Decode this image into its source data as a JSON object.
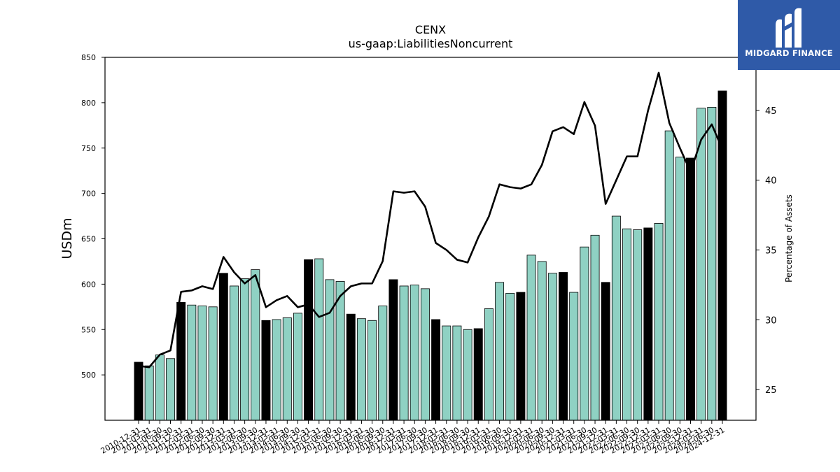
{
  "chart_data": {
    "type": "bar+line",
    "title": "CENX",
    "subtitle": "us-gaap:LiabilitiesNoncurrent",
    "ylabel": "USDm",
    "y2label": "Percentage of Assets",
    "ylim": [
      450,
      850
    ],
    "y2lim": [
      22.8,
      48.8
    ],
    "yticks": [
      500,
      550,
      600,
      650,
      700,
      750,
      800,
      850
    ],
    "y2ticks": [
      25,
      30,
      35,
      40,
      45
    ],
    "bar_color_quarter": "#8fd1c3",
    "bar_color_annual": "#000000",
    "line_color": "#000000",
    "categories": [
      "2010-12-31",
      "2011-03-31",
      "2011-06-30",
      "2011-09-30",
      "2011-12-31",
      "2012-03-31",
      "2012-06-30",
      "2012-09-30",
      "2012-12-31",
      "2013-03-31",
      "2013-06-30",
      "2013-09-30",
      "2013-12-31",
      "2014-03-31",
      "2014-06-30",
      "2014-09-30",
      "2014-12-31",
      "2015-03-31",
      "2015-06-30",
      "2015-09-30",
      "2015-12-31",
      "2016-03-31",
      "2016-06-30",
      "2016-09-30",
      "2016-12-31",
      "2017-03-31",
      "2017-06-30",
      "2017-09-30",
      "2017-12-31",
      "2018-03-31",
      "2018-06-30",
      "2018-09-30",
      "2018-12-31",
      "2019-03-31",
      "2019-06-30",
      "2019-09-30",
      "2019-12-31",
      "2020-03-31",
      "2020-06-30",
      "2020-09-30",
      "2020-12-31",
      "2021-03-31",
      "2021-06-30",
      "2021-09-30",
      "2021-12-31",
      "2022-03-31",
      "2022-06-30",
      "2022-09-30",
      "2022-12-31",
      "2023-03-31",
      "2023-06-30",
      "2023-09-30",
      "2023-12-31",
      "2024-03-31",
      "2024-06-30",
      "2024-12-31"
    ],
    "xticklabels": [
      "2010-12-31",
      "2011-03-31",
      "2011-06-30",
      "2011-09-30",
      "2011-12-31",
      "2012-03-31",
      "2012-06-30",
      "2012-09-30",
      "2012-12-31",
      "2013-03-31",
      "2013-06-30",
      "2013-09-30",
      "2013-12-31",
      "2014-03-31",
      "2014-06-30",
      "2014-09-30",
      "2014-12-31",
      "2015-03-31",
      "2015-06-30",
      "2015-09-30",
      "2015-12-31",
      "2016-03-31",
      "2016-06-30",
      "2016-09-30",
      "2016-12-31",
      "2017-03-31",
      "2017-06-30",
      "2017-09-30",
      "2017-12-31",
      "2018-03-31",
      "2018-06-30",
      "2018-09-30",
      "2018-12-31",
      "2019-03-31",
      "2019-06-30",
      "2019-09-30",
      "2019-12-31",
      "2020-03-31",
      "2020-06-30",
      "2020-09-30",
      "2020-12-31",
      "2021-03-31",
      "2021-06-30",
      "2021-09-30",
      "2021-12-31",
      "2022-03-31",
      "2022-06-30",
      "2022-09-30",
      "2022-12-31",
      "2023-03-31",
      "2023-06-30",
      "2023-09-30",
      "2023-12-31",
      "2024-03-31",
      "2024-06-30",
      "2024-12-31"
    ],
    "annual": [
      true,
      false,
      false,
      false,
      true,
      false,
      false,
      false,
      true,
      false,
      false,
      false,
      true,
      false,
      false,
      false,
      true,
      false,
      false,
      false,
      true,
      false,
      false,
      false,
      true,
      false,
      false,
      false,
      true,
      false,
      false,
      false,
      true,
      false,
      false,
      false,
      true,
      false,
      false,
      false,
      true,
      false,
      false,
      false,
      true,
      false,
      false,
      false,
      true,
      false,
      false,
      false,
      true,
      false,
      false,
      true
    ],
    "values": [
      514,
      510,
      522,
      518,
      580,
      577,
      576,
      575,
      612,
      598,
      606,
      616,
      560,
      561,
      563,
      568,
      627,
      628,
      605,
      603,
      567,
      562,
      560,
      576,
      605,
      598,
      599,
      595,
      561,
      554,
      554,
      550,
      551,
      573,
      602,
      590,
      591,
      632,
      625,
      612,
      613,
      591,
      641,
      654,
      602,
      675,
      661,
      660,
      662,
      667,
      769,
      740,
      739,
      794,
      795,
      813
    ],
    "pct": [
      26.7,
      26.6,
      27.5,
      27.8,
      32.0,
      32.1,
      32.4,
      32.2,
      34.5,
      33.4,
      32.6,
      33.2,
      30.9,
      31.4,
      31.7,
      30.9,
      31.1,
      30.2,
      30.5,
      31.7,
      32.4,
      32.6,
      32.6,
      34.2,
      39.2,
      39.1,
      39.2,
      38.1,
      35.5,
      35.0,
      34.3,
      34.1,
      35.9,
      37.4,
      39.7,
      39.5,
      39.4,
      39.7,
      41.1,
      43.5,
      43.8,
      43.3,
      45.6,
      43.9,
      38.3,
      40.0,
      41.7,
      41.7,
      45.0,
      47.7,
      44.1,
      42.3,
      40.6,
      42.9,
      44.0,
      42.2
    ]
  },
  "logo": {
    "text": "MIDGARD FINANCE"
  }
}
